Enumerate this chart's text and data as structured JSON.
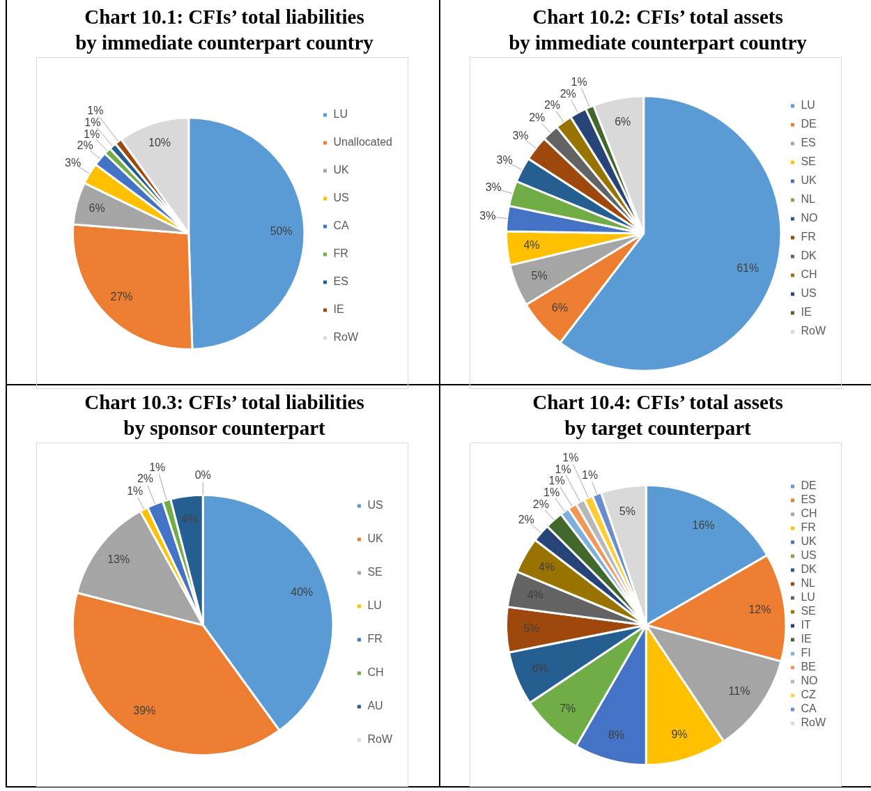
{
  "chart_data": [
    {
      "type": "pie",
      "title": "Chart 10.1: CFIs’ total liabilities\nby immediate counterpart country",
      "legend": "right",
      "categories": [
        "LU",
        "Unallocated",
        "UK",
        "US",
        "CA",
        "FR",
        "ES",
        "IE",
        "RoW"
      ],
      "values": [
        50,
        27,
        6,
        3,
        2,
        1,
        1,
        1,
        10
      ],
      "value_labels": [
        "50%",
        "27%",
        "6%",
        "3%",
        "2%",
        "1%",
        "1%",
        "1%",
        "10%"
      ],
      "colors": [
        "#5b9bd5",
        "#ed7d31",
        "#a5a5a5",
        "#ffc000",
        "#4472c4",
        "#70ad47",
        "#255e91",
        "#9e480e",
        "#d9d9d9"
      ]
    },
    {
      "type": "pie",
      "title": "Chart 10.2: CFIs’ total assets\nby immediate counterpart country",
      "legend": "right",
      "categories": [
        "LU",
        "DE",
        "ES",
        "SE",
        "UK",
        "NL",
        "NO",
        "FR",
        "DK",
        "CH",
        "US",
        "IE",
        "RoW"
      ],
      "values": [
        61,
        6,
        5,
        4,
        3,
        3,
        3,
        3,
        2,
        2,
        2,
        1,
        6
      ],
      "value_labels": [
        "61%",
        "6%",
        "5%",
        "4%",
        "3%",
        "3%",
        "3%",
        "3%",
        "2%",
        "2%",
        "2%",
        "1%",
        "6%"
      ],
      "colors": [
        "#5b9bd5",
        "#ed7d31",
        "#a5a5a5",
        "#ffc000",
        "#4472c4",
        "#70ad47",
        "#255e91",
        "#9e480e",
        "#636363",
        "#997300",
        "#264478",
        "#43682b",
        "#d9d9d9"
      ]
    },
    {
      "type": "pie",
      "title": "Chart 10.3: CFIs’ total liabilities\nby sponsor counterpart",
      "legend": "right",
      "categories": [
        "US",
        "UK",
        "SE",
        "LU",
        "FR",
        "CH",
        "AU",
        "RoW"
      ],
      "values": [
        40,
        39,
        13,
        1,
        2,
        1,
        4,
        0
      ],
      "value_labels": [
        "40%",
        "39%",
        "13%",
        "1%",
        "2%",
        "1%",
        "4%",
        "0%"
      ],
      "colors": [
        "#5b9bd5",
        "#ed7d31",
        "#a5a5a5",
        "#ffc000",
        "#4472c4",
        "#70ad47",
        "#255e91",
        "#d9d9d9"
      ]
    },
    {
      "type": "pie",
      "title": "Chart 10.4: CFIs’ total assets\nby target counterpart",
      "legend": "right",
      "categories": [
        "DE",
        "ES",
        "CH",
        "FR",
        "UK",
        "US",
        "DK",
        "NL",
        "LU",
        "SE",
        "IT",
        "IE",
        "FI",
        "BE",
        "NO",
        "CZ",
        "CA",
        "RoW"
      ],
      "values": [
        16,
        12,
        11,
        9,
        8,
        7,
        6,
        5,
        4,
        4,
        2,
        2,
        1,
        1,
        1,
        1,
        1,
        5
      ],
      "value_labels": [
        "16%",
        "12%",
        "11%",
        "9%",
        "8%",
        "7%",
        "6%",
        "5%",
        "4%",
        "4%",
        "2%",
        "2%",
        "1%",
        "1%",
        "1%",
        "1%",
        "1%",
        "5%"
      ],
      "colors": [
        "#5b9bd5",
        "#ed7d31",
        "#a5a5a5",
        "#ffc000",
        "#4472c4",
        "#70ad47",
        "#255e91",
        "#9e480e",
        "#636363",
        "#997300",
        "#264478",
        "#43682b",
        "#7cafdd",
        "#f1975a",
        "#b7b7b7",
        "#ffcd33",
        "#698ed0",
        "#d9d9d9"
      ]
    }
  ]
}
